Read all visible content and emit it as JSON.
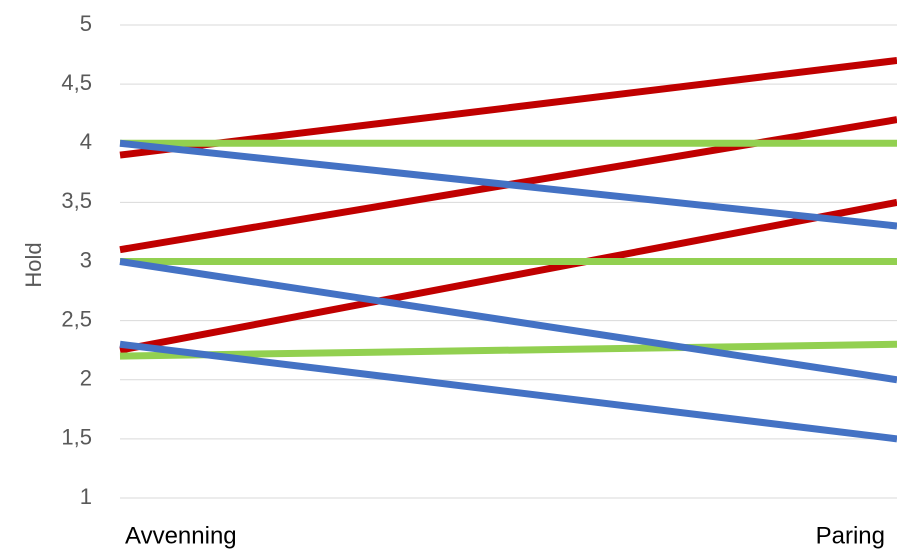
{
  "chart_data": {
    "type": "line",
    "categories": [
      "Avvenning",
      "Paring"
    ],
    "ylabel": "Hold",
    "xlabel": "",
    "ylim": [
      1,
      5
    ],
    "yticks": [
      "1",
      "1,5",
      "2",
      "2,5",
      "3",
      "3,5",
      "4",
      "4,5",
      "5"
    ],
    "grid": true,
    "series": [
      {
        "color": "#c00000",
        "values": [
          3.9,
          4.7
        ]
      },
      {
        "color": "#c00000",
        "values": [
          3.1,
          4.2
        ]
      },
      {
        "color": "#c00000",
        "values": [
          2.25,
          3.5
        ]
      },
      {
        "color": "#92d050",
        "values": [
          4.0,
          4.0
        ]
      },
      {
        "color": "#92d050",
        "values": [
          3.0,
          3.0
        ]
      },
      {
        "color": "#92d050",
        "values": [
          2.2,
          2.3
        ]
      },
      {
        "color": "#4472c4",
        "values": [
          4.0,
          3.3
        ]
      },
      {
        "color": "#4472c4",
        "values": [
          3.0,
          2.0
        ]
      },
      {
        "color": "#4472c4",
        "values": [
          2.3,
          1.5
        ]
      }
    ]
  }
}
